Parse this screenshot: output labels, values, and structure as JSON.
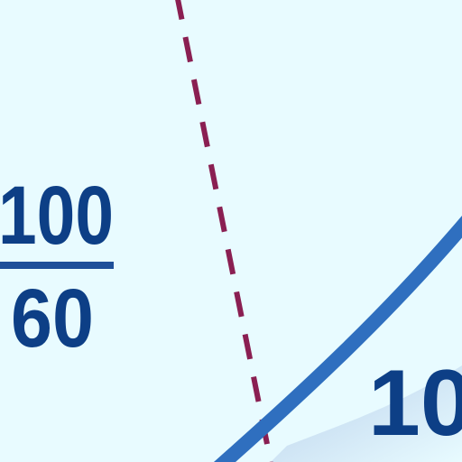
{
  "fraction": {
    "numerator": "100",
    "denominator": "60"
  },
  "corner_number": "10",
  "colors": {
    "background": "#e8fbff",
    "text": "#0d3f86",
    "fraction_bar": "#1e4f99",
    "curve": "#2f6fbf",
    "dashed_line": "#8a1f52",
    "wedge": "#a9c8e6"
  }
}
